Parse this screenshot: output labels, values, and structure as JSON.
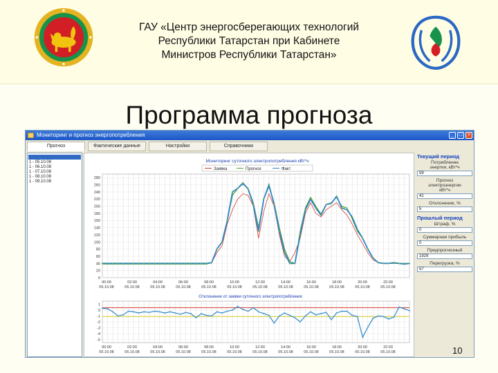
{
  "header": {
    "title_lines": [
      "ГАУ «Центр энергосберегающих технологий",
      "Республики Татарстан при Кабинете",
      "Министров Республики Татарстан»"
    ],
    "colors": {
      "emblem_red": "#d21f26",
      "emblem_gold": "#e4b322",
      "emblem_green": "#17924b",
      "logo_blue": "#2b68c4"
    }
  },
  "slide_title": "Программа прогноза",
  "page_number": "10",
  "window": {
    "title": "Мониторинг и прогноз энергопотребления",
    "tabs": [
      {
        "label": "Прогноз"
      },
      {
        "label": "Фактические данные"
      },
      {
        "label": "Настройки"
      },
      {
        "label": "Справочники"
      }
    ],
    "list_items": [
      "1 - 05.10.08",
      "1 - 06.10.08",
      "1 - 07.10.08",
      "1 - 08.10.08",
      "1 - 09.10.08"
    ],
    "right_panel": {
      "current_header": "Текущий период",
      "current_fields": [
        {
          "label_lines": [
            "Потребление",
            "энергии, кВт*ч"
          ],
          "value": "59"
        },
        {
          "label_lines": [
            "Прогноз",
            "электроэнергии",
            "кВт*ч"
          ],
          "value": "41"
        },
        {
          "label_lines": [
            "Отклонение, %"
          ],
          "value": "5"
        }
      ],
      "previous_header": "Прошлый период",
      "previous_fields": [
        {
          "label_lines": [
            "Штраф, %"
          ],
          "value": "0"
        },
        {
          "label_lines": [
            "Суммарная прибыль"
          ],
          "value": "0"
        },
        {
          "label_lines": [
            "Предпрогнозный"
          ],
          "value": "1929"
        },
        {
          "label_lines": [
            "Перегрузка, %"
          ],
          "value": "57"
        }
      ]
    }
  },
  "chart_data": [
    {
      "type": "line",
      "title": "Мониторинг суточного электропотребления кВт*ч",
      "legend": [
        "Заявка",
        "Прогноз",
        "Факт"
      ],
      "series_colors": [
        "#d33a2e",
        "#4c9f38",
        "#2e86c8"
      ],
      "x_ticks": [
        "00:00",
        "02:00",
        "04:00",
        "06:00",
        "08:00",
        "10:00",
        "12:00",
        "14:00",
        "16:00",
        "18:00",
        "20:00",
        "22:00"
      ],
      "x_tick_date": "05.10.08",
      "y_ticks": [
        0,
        20,
        40,
        60,
        80,
        100,
        120,
        140,
        160,
        180,
        200,
        220,
        240,
        260,
        280
      ],
      "ylim": [
        0,
        290
      ],
      "series": [
        {
          "name": "Заявка",
          "values": [
            40,
            40,
            40,
            40,
            40,
            40,
            40,
            40,
            40,
            40,
            40,
            40,
            40,
            40,
            40,
            40,
            40,
            40,
            40,
            40,
            40,
            42,
            70,
            90,
            150,
            190,
            220,
            235,
            230,
            200,
            110,
            185,
            235,
            200,
            120,
            60,
            45,
            70,
            110,
            180,
            210,
            180,
            170,
            190,
            200,
            210,
            190,
            175,
            150,
            120,
            95,
            70,
            50,
            42,
            40,
            40,
            40,
            40,
            40,
            40
          ]
        },
        {
          "name": "Прогноз",
          "values": [
            38,
            38,
            38,
            38,
            38,
            38,
            38,
            38,
            38,
            38,
            38,
            38,
            38,
            38,
            38,
            38,
            38,
            38,
            38,
            38,
            38,
            42,
            80,
            100,
            160,
            230,
            250,
            262,
            250,
            210,
            140,
            220,
            255,
            210,
            140,
            80,
            45,
            40,
            130,
            195,
            225,
            200,
            178,
            205,
            210,
            225,
            200,
            195,
            165,
            130,
            110,
            80,
            55,
            42,
            40,
            40,
            40,
            40,
            40,
            40
          ]
        },
        {
          "name": "Факт",
          "values": [
            40,
            40,
            40,
            40,
            40,
            40,
            40,
            40,
            40,
            40,
            40,
            40,
            40,
            40,
            40,
            40,
            40,
            40,
            40,
            40,
            40,
            42,
            80,
            100,
            160,
            240,
            250,
            265,
            248,
            205,
            130,
            220,
            260,
            205,
            130,
            70,
            40,
            40,
            120,
            190,
            220,
            195,
            175,
            205,
            208,
            228,
            195,
            190,
            170,
            135,
            110,
            80,
            55,
            42,
            40,
            40,
            42,
            40,
            38,
            40
          ]
        }
      ]
    },
    {
      "type": "line",
      "title": "Отклонение от заявки суточного электропотребления",
      "x_ticks": [
        "00:00",
        "02:00",
        "04:00",
        "06:00",
        "08:00",
        "10:00",
        "12:00",
        "14:00",
        "16:00",
        "18:00",
        "20:00",
        "22:00"
      ],
      "x_tick_date": "05.10.08",
      "y_ticks": [
        "1",
        "0",
        "-1",
        "-2",
        "-3",
        "-4",
        "-5"
      ],
      "ylim": [
        -5.5,
        1.5
      ],
      "reference_lines": [
        {
          "value": 0.4,
          "color": "#d33a2e"
        },
        {
          "value": -1.1,
          "color": "#d9d12a"
        }
      ],
      "series": [
        {
          "values": [
            0.3,
            0.2,
            -0.3,
            -1.0,
            -0.8,
            -0.2,
            -0.3,
            -0.5,
            -0.3,
            -0.4,
            -0.2,
            -0.3,
            -0.5,
            -0.3,
            -0.5,
            -0.7,
            -0.4,
            -0.6,
            -1.3,
            -0.6,
            -0.9,
            -1.0,
            -0.3,
            -0.5,
            -0.2,
            0.0,
            0.6,
            0.1,
            -0.2,
            0.4,
            -0.3,
            -0.6,
            -0.9,
            -2.2,
            -1.0,
            -0.5,
            -0.9,
            -1.3,
            -2.0,
            -1.0,
            -0.3,
            -0.8,
            -0.6,
            -0.4,
            -1.6,
            -0.5,
            -0.2,
            -0.2,
            -0.9,
            -1.1,
            -4.6,
            -2.9,
            -1.4,
            -1.0,
            -1.1,
            -1.5,
            -1.2,
            0.5,
            0.2,
            -0.1
          ]
        }
      ]
    }
  ]
}
